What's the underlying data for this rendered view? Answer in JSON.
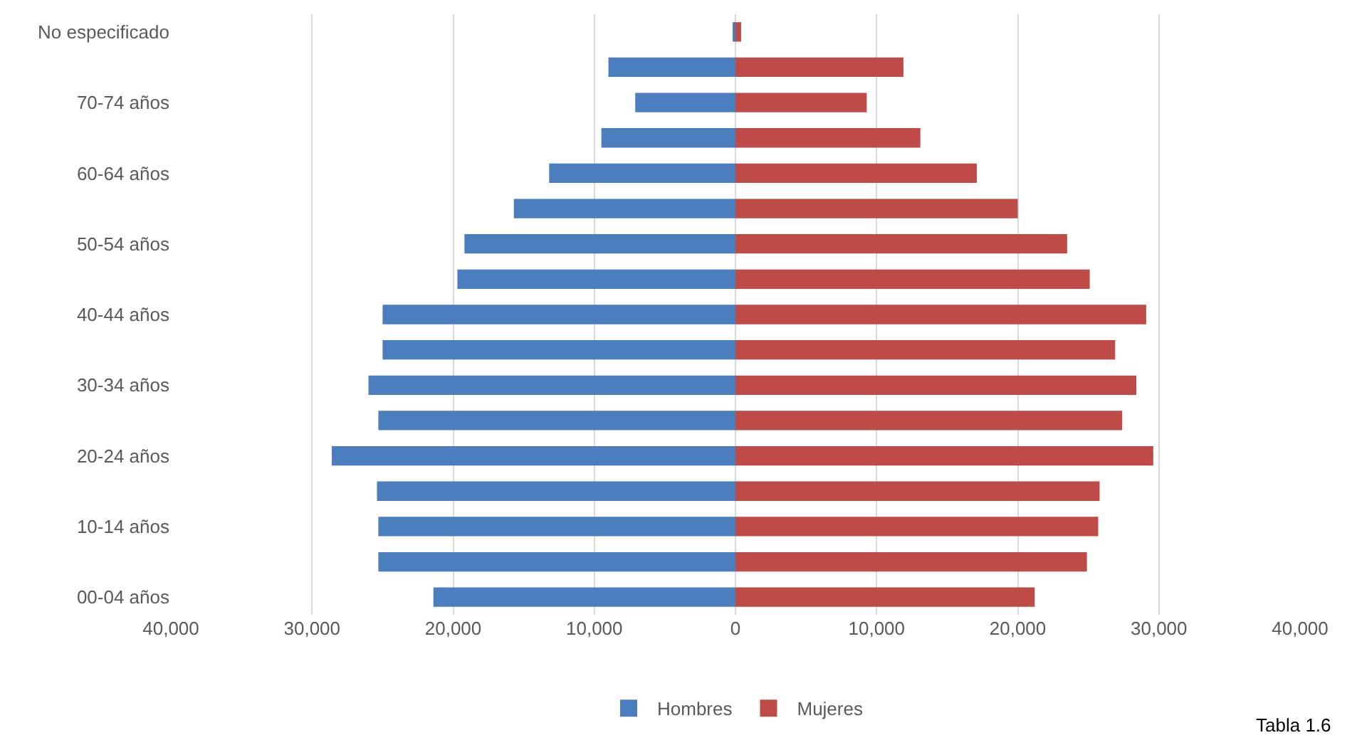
{
  "chart_data": {
    "type": "bar",
    "orientation": "horizontal",
    "stacked": true,
    "categories": [
      "No especificado",
      null,
      "70-74 años",
      null,
      "60-64 años",
      null,
      "50-54 años",
      null,
      "40-44 años",
      null,
      "30-34 años",
      null,
      "20-24 años",
      null,
      "10-14 años",
      null,
      "00-04 años"
    ],
    "series": [
      {
        "name": "Hombres",
        "color": "#4a7ebf",
        "values": [
          -200,
          -9000,
          -7100,
          -9500,
          -13200,
          -15700,
          -19200,
          -19700,
          -25000,
          -25000,
          -26000,
          -25300,
          -28600,
          -25400,
          -25300,
          -25300,
          -21400
        ]
      },
      {
        "name": "Mujeres",
        "color": "#be4b48",
        "values": [
          400,
          11900,
          9300,
          13100,
          17100,
          20000,
          23500,
          25100,
          29100,
          26900,
          28400,
          27400,
          29600,
          25800,
          25700,
          24900,
          21200
        ]
      }
    ],
    "xlim": [
      -40000,
      40000
    ],
    "xticks": [
      {
        "value": -40000,
        "label": "40,000"
      },
      {
        "value": -30000,
        "label": "30,000"
      },
      {
        "value": -20000,
        "label": "20,000"
      },
      {
        "value": -10000,
        "label": "10,000"
      },
      0,
      {
        "value": 10000,
        "label": "10,000"
      },
      {
        "value": 20000,
        "label": "20,000"
      },
      {
        "value": 30000,
        "label": "30,000"
      },
      {
        "value": 40000,
        "label": "40,000"
      }
    ],
    "grid": "x",
    "legend": "bottom",
    "annotations": [
      "Tabla 1.6"
    ]
  }
}
